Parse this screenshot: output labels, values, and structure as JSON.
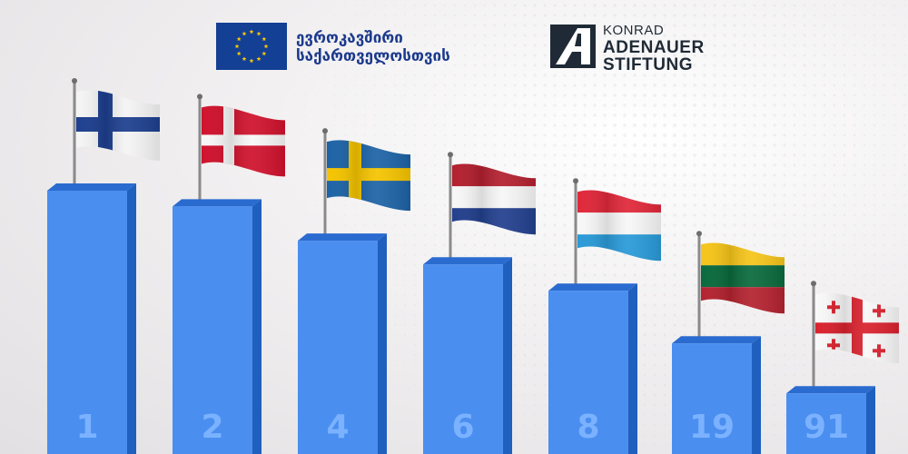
{
  "header": {
    "eu_text_line1": "ევროკავშირი",
    "eu_text_line2": "საქართველოსთვის",
    "kas_line1": "KONRAD",
    "kas_line2": "ADENAUER",
    "kas_line3": "STIFTUNG"
  },
  "colors": {
    "bar_front": "#4a8ef0",
    "bar_side": "#1f5fbe",
    "bar_top": "#2a6bd0",
    "label": "#7bb2ff",
    "eu_blue": "#133f95",
    "eu_star": "#ffcc00"
  },
  "chart_data": {
    "type": "bar",
    "categories": [
      "Finland",
      "Denmark",
      "Sweden",
      "Netherlands",
      "Luxembourg",
      "Lithuania",
      "Georgia"
    ],
    "values": [
      1,
      2,
      4,
      6,
      8,
      19,
      91
    ],
    "value_labels": [
      "1",
      "2",
      "4",
      "6",
      "8",
      "19",
      "91"
    ],
    "flags": [
      "finland-flag",
      "denmark-flag",
      "sweden-flag",
      "netherlands-flag",
      "luxembourg-flag",
      "lithuania-flag",
      "georgia-flag"
    ],
    "relative_heights": [
      1.0,
      0.94,
      0.81,
      0.72,
      0.62,
      0.42,
      0.23
    ],
    "title": "",
    "xlabel": "",
    "ylabel": "",
    "grid": false,
    "legend": "none"
  }
}
